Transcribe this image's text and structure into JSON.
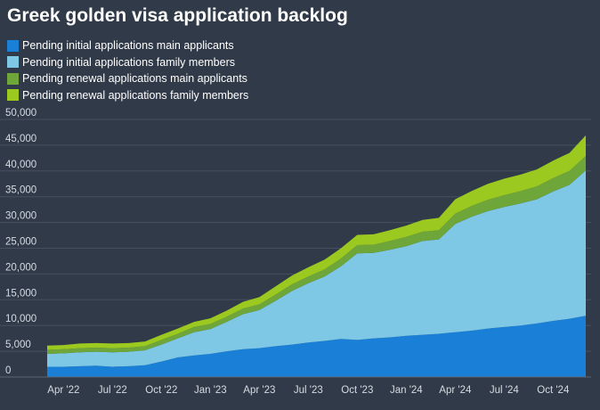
{
  "chart_data": {
    "type": "area",
    "stacked": true,
    "title": "Greek golden visa application backlog",
    "x": [
      "2022-03",
      "2022-04",
      "2022-05",
      "2022-06",
      "2022-07",
      "2022-08",
      "2022-09",
      "2022-10",
      "2022-11",
      "2022-12",
      "2023-01",
      "2023-02",
      "2023-03",
      "2023-04",
      "2023-05",
      "2023-06",
      "2023-07",
      "2023-08",
      "2023-09",
      "2023-10",
      "2023-11",
      "2023-12",
      "2024-01",
      "2024-02",
      "2024-03",
      "2024-04",
      "2024-05",
      "2024-06",
      "2024-07",
      "2024-08",
      "2024-09",
      "2024-10",
      "2024-11",
      "2024-12"
    ],
    "x_tick_labels": [
      "Apr '22",
      "Jul '22",
      "Oct '22",
      "Jan '23",
      "Apr '23",
      "Jul '23",
      "Oct '23",
      "Jan '24",
      "Apr '24",
      "Jul '24",
      "Oct '24"
    ],
    "x_tick_indices": [
      1,
      4,
      7,
      10,
      13,
      16,
      19,
      22,
      25,
      28,
      31
    ],
    "y_ticks": [
      "0",
      "5,000",
      "10,000",
      "15,000",
      "20,000",
      "25,000",
      "30,000",
      "35,000",
      "40,000",
      "45,000",
      "50,000"
    ],
    "ylim": [
      0,
      50000
    ],
    "xlabel": "",
    "ylabel": "",
    "grid": true,
    "legend_position": "top-left",
    "series": [
      {
        "name": "Pending initial applications main applicants",
        "color": "#1a7fd6",
        "values": [
          2000,
          2000,
          2100,
          2200,
          2000,
          2100,
          2300,
          3000,
          3800,
          4200,
          4500,
          5000,
          5400,
          5600,
          6000,
          6300,
          6700,
          7000,
          7400,
          7200,
          7500,
          7700,
          8000,
          8200,
          8400,
          8700,
          9000,
          9400,
          9700,
          10000,
          10400,
          10900,
          11300,
          11900
        ]
      },
      {
        "name": "Pending initial applications family members",
        "color": "#7ec8e6",
        "values": [
          2500,
          2600,
          2700,
          2700,
          2800,
          2800,
          2900,
          3300,
          3700,
          4500,
          4800,
          5700,
          6800,
          7400,
          8800,
          10400,
          11500,
          12500,
          14100,
          16800,
          16600,
          17000,
          17400,
          18200,
          18300,
          21000,
          22100,
          22800,
          23300,
          23700,
          24100,
          25100,
          26000,
          28200
        ]
      },
      {
        "name": "Pending renewal applications main applicants",
        "color": "#6ea63a",
        "values": [
          800,
          800,
          800,
          800,
          800,
          800,
          800,
          900,
          900,
          1000,
          1000,
          1000,
          1100,
          1100,
          1200,
          1300,
          1300,
          1400,
          1500,
          1600,
          1600,
          1700,
          1800,
          1800,
          1800,
          2000,
          2100,
          2200,
          2300,
          2400,
          2500,
          2600,
          2700,
          2800
        ]
      },
      {
        "name": "Pending renewal applications family members",
        "color": "#9bc91f",
        "values": [
          800,
          800,
          900,
          900,
          900,
          900,
          900,
          1000,
          1000,
          1000,
          1100,
          1200,
          1300,
          1400,
          1600,
          1700,
          1800,
          1900,
          2000,
          2000,
          2000,
          2100,
          2200,
          2300,
          2400,
          2800,
          2900,
          3100,
          3200,
          3200,
          3300,
          3400,
          3500,
          4000
        ]
      }
    ]
  }
}
